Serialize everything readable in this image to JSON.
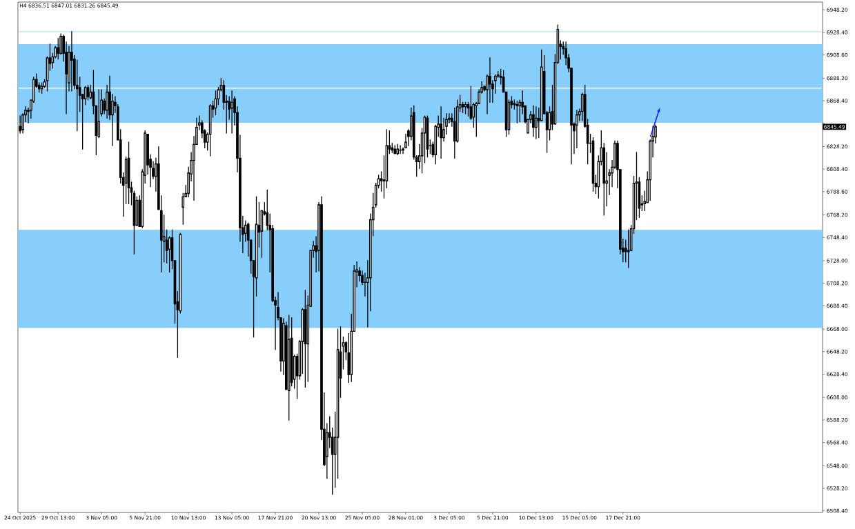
{
  "chart_data": {
    "type": "candlestick",
    "title": "H4  6836.51 6847.01 6831.26 6845.49",
    "categories": [
      "24 Oct 2025",
      null,
      null,
      null,
      null,
      null,
      null,
      null,
      null,
      null,
      null,
      null,
      null,
      null,
      "29 Oct 13:00",
      null,
      null,
      null,
      null,
      null,
      null,
      null,
      null,
      null,
      null,
      null,
      null,
      null,
      null,
      null,
      "3 Nov 05:00",
      null,
      null,
      null,
      null,
      null,
      null,
      null,
      null,
      null,
      null,
      null,
      null,
      null,
      null,
      null,
      "5 Nov 21:00",
      null,
      null,
      null,
      null,
      null,
      null,
      null,
      null,
      null,
      null,
      null,
      null,
      null,
      null,
      null,
      "10 Nov 13:00",
      null,
      null,
      null,
      null,
      null,
      null,
      null,
      null,
      null,
      null,
      null,
      null,
      null,
      null,
      null,
      "13 Nov 05:00",
      null,
      null,
      null,
      null,
      null,
      null,
      null,
      null,
      null,
      null,
      null,
      null,
      null,
      null,
      null,
      "17 Nov 21:00",
      null,
      null,
      null,
      null,
      null,
      null,
      null,
      null,
      null,
      null,
      null,
      null,
      null,
      null,
      null,
      "20 Nov 13:00",
      null,
      null,
      null,
      null,
      null,
      null,
      null,
      null,
      null,
      null,
      null,
      null,
      null,
      null,
      null,
      "25 Nov 05:00",
      null,
      null,
      null,
      null,
      null,
      null,
      null,
      null,
      null,
      null,
      null,
      null,
      null,
      null,
      null,
      "28 Nov 01:00",
      null,
      null,
      null,
      null,
      null,
      null,
      null,
      null,
      null,
      null,
      null,
      null,
      null,
      null,
      null,
      "3 Dec 05:00",
      null,
      null,
      null,
      null,
      null,
      null,
      null,
      null,
      null,
      null,
      null,
      null,
      null,
      null,
      null,
      "5 Dec 21:00",
      null,
      null,
      null,
      null,
      null,
      null,
      null,
      null,
      null,
      null,
      null,
      null,
      null,
      null,
      null,
      "10 Dec 13:00",
      null,
      null,
      null,
      null,
      null,
      null,
      null,
      null,
      null,
      null,
      null,
      null,
      null,
      null,
      null,
      "15 Dec 05:00",
      null,
      null,
      null,
      null,
      null,
      null,
      null,
      null,
      null,
      null,
      null,
      null,
      null,
      null,
      null,
      "17 Dec 21:00",
      null,
      null,
      null,
      null,
      null,
      null,
      null,
      null,
      null,
      null,
      null,
      null,
      null,
      null,
      null,
      null,
      null,
      null,
      null,
      null,
      null,
      null,
      null,
      null,
      null,
      null,
      null,
      null,
      null,
      null,
      null,
      null,
      null,
      null,
      null,
      null,
      null,
      null,
      null,
      null,
      null,
      null,
      null,
      null,
      null,
      null,
      null,
      null,
      null,
      null,
      null,
      null,
      null,
      null,
      null,
      null,
      null,
      null,
      null,
      null,
      null,
      null,
      null,
      null,
      null,
      null,
      null,
      null,
      null,
      null,
      null,
      null,
      null
    ],
    "ohlc": [
      [
        6846,
        6855,
        6840,
        6842
      ],
      [
        6843,
        6857,
        6840,
        6856
      ],
      [
        6856,
        6863,
        6850,
        6860
      ],
      [
        6860,
        6862,
        6849,
        6859
      ],
      [
        6860,
        6869,
        6853,
        6869
      ],
      [
        6868,
        6889,
        6867,
        6887
      ],
      [
        6887,
        6892,
        6880,
        6881
      ],
      [
        6882,
        6884,
        6876,
        6879
      ],
      [
        6879,
        6884,
        6875,
        6881
      ],
      [
        6881,
        6887,
        6880,
        6885
      ],
      [
        6886,
        6907,
        6877,
        6906
      ],
      [
        6906,
        6918,
        6895,
        6901
      ],
      [
        6902,
        6910,
        6897,
        6907
      ],
      [
        6907,
        6916,
        6906,
        6915
      ],
      [
        6915,
        6923,
        6905,
        6910
      ],
      [
        6910,
        6927,
        6909,
        6925
      ],
      [
        6925,
        6926,
        6903,
        6910
      ],
      [
        6911,
        6920,
        6857,
        6892
      ],
      [
        6884,
        6916,
        6877,
        6911
      ],
      [
        6911,
        6929,
        6877,
        6904
      ],
      [
        6905,
        6908,
        6879,
        6882
      ],
      [
        6882,
        6904,
        6842,
        6879
      ],
      [
        6880,
        6889,
        6859,
        6873
      ],
      [
        6874,
        6874,
        6826,
        6870
      ],
      [
        6870,
        6881,
        6865,
        6880
      ],
      [
        6880,
        6882,
        6869,
        6872
      ],
      [
        6871,
        6882,
        6870,
        6876
      ],
      [
        6876,
        6895,
        6857,
        6864
      ],
      [
        6864,
        6864,
        6821,
        6838
      ],
      [
        6837,
        6878,
        6836,
        6850
      ],
      [
        6857,
        6878,
        6855,
        6869
      ],
      [
        6868,
        6870,
        6857,
        6860
      ],
      [
        6860,
        6882,
        6853,
        6876
      ],
      [
        6876,
        6890,
        6852,
        6856
      ],
      [
        6856,
        6874,
        6829,
        6868
      ],
      [
        6867,
        6872,
        6858,
        6864
      ],
      [
        6863,
        6865,
        6834,
        6834
      ],
      [
        6834,
        6843,
        6796,
        6801
      ],
      [
        6801,
        6805,
        6767,
        6794
      ],
      [
        6796,
        6819,
        6778,
        6817
      ],
      [
        6818,
        6832,
        6778,
        6792
      ],
      [
        6792,
        6797,
        6777,
        6788
      ],
      [
        6787,
        6789,
        6734,
        6759
      ],
      [
        6759,
        6784,
        6759,
        6781
      ],
      [
        6781,
        6785,
        6758,
        6758
      ],
      [
        6758,
        6808,
        6757,
        6806
      ],
      [
        6803,
        6842,
        6796,
        6840
      ],
      [
        6839,
        6839,
        6804,
        6812
      ],
      [
        6817,
        6821,
        6793,
        6810
      ],
      [
        6809,
        6815,
        6800,
        6802
      ],
      [
        6802,
        6818,
        6789,
        6813
      ],
      [
        6813,
        6828,
        6773,
        6773
      ],
      [
        6772,
        6785,
        6718,
        6746
      ],
      [
        6745,
        6768,
        6727,
        6749
      ],
      [
        6746,
        6755,
        6726,
        6737
      ],
      [
        6738,
        6749,
        6718,
        6748
      ],
      [
        6748,
        6755,
        6721,
        6728
      ],
      [
        6728,
        6728,
        6673,
        6690
      ],
      [
        6692,
        6701,
        6643,
        6685
      ],
      [
        6684,
        6752,
        6682,
        6751
      ],
      [
        6775,
        6787,
        6760,
        6784
      ],
      [
        6784,
        6794,
        6784,
        6787
      ],
      [
        6787,
        6810,
        6784,
        6805
      ],
      [
        6804,
        6823,
        6798,
        6816
      ],
      [
        6816,
        6837,
        6781,
        6830
      ],
      [
        6830,
        6853,
        6830,
        6845
      ],
      [
        6847,
        6855,
        6843,
        6849
      ],
      [
        6849,
        6851,
        6836,
        6840
      ],
      [
        6842,
        6843,
        6827,
        6832
      ],
      [
        6832,
        6840,
        6825,
        6839
      ],
      [
        6839,
        6865,
        6820,
        6864
      ],
      [
        6864,
        6868,
        6854,
        6861
      ],
      [
        6862,
        6877,
        6856,
        6870
      ],
      [
        6870,
        6880,
        6865,
        6878
      ],
      [
        6878,
        6888,
        6877,
        6882
      ],
      [
        6882,
        6886,
        6861,
        6867
      ],
      [
        6868,
        6873,
        6840,
        6867
      ],
      [
        6868,
        6872,
        6852,
        6861
      ],
      [
        6862,
        6877,
        6840,
        6867
      ],
      [
        6870,
        6872,
        6847,
        6858
      ],
      [
        6858,
        6863,
        6806,
        6818
      ],
      [
        6818,
        6838,
        6745,
        6757
      ],
      [
        6757,
        6767,
        6735,
        6751
      ],
      [
        6752,
        6763,
        6745,
        6759
      ],
      [
        6760,
        6761,
        6732,
        6746
      ],
      [
        6746,
        6746,
        6717,
        6728
      ],
      [
        6728,
        6728,
        6661,
        6714
      ],
      [
        6713,
        6784,
        6697,
        6760
      ],
      [
        6759,
        6779,
        6740,
        6753
      ],
      [
        6754,
        6772,
        6731,
        6772
      ],
      [
        6771,
        6779,
        6768,
        6769
      ],
      [
        6770,
        6790,
        6755,
        6759
      ],
      [
        6759,
        6769,
        6718,
        6755
      ],
      [
        6756,
        6759,
        6692,
        6693
      ],
      [
        6693,
        6696,
        6650,
        6689
      ],
      [
        6687,
        6700,
        6676,
        6678
      ],
      [
        6678,
        6678,
        6631,
        6640
      ],
      [
        6640,
        6677,
        6628,
        6673
      ],
      [
        6671,
        6674,
        6615,
        6615
      ],
      [
        6614,
        6680,
        6588,
        6659
      ],
      [
        6660,
        6678,
        6618,
        6621
      ],
      [
        6624,
        6645,
        6616,
        6644
      ],
      [
        6644,
        6646,
        6607,
        6627
      ],
      [
        6627,
        6658,
        6624,
        6657
      ],
      [
        6657,
        6686,
        6629,
        6685
      ],
      [
        6685,
        6702,
        6617,
        6655
      ],
      [
        6655,
        6697,
        6622,
        6689
      ],
      [
        6688,
        6737,
        6688,
        6737
      ],
      [
        6737,
        6745,
        6731,
        6741
      ],
      [
        6741,
        6749,
        6718,
        6736
      ],
      [
        6737,
        6779,
        6719,
        6777
      ],
      [
        6777,
        6784,
        6571,
        6580
      ],
      [
        6580,
        6612,
        6548,
        6549
      ],
      [
        6556,
        6585,
        6537,
        6577
      ],
      [
        6577,
        6591,
        6564,
        6573
      ],
      [
        6573,
        6581,
        6523,
        6558
      ],
      [
        6558,
        6595,
        6529,
        6573
      ],
      [
        6573,
        6668,
        6537,
        6650
      ],
      [
        6648,
        6670,
        6608,
        6625
      ],
      [
        6653,
        6661,
        6633,
        6656
      ],
      [
        6656,
        6657,
        6641,
        6648
      ],
      [
        6647,
        6664,
        6621,
        6628
      ],
      [
        6628,
        6681,
        6622,
        6666
      ],
      [
        6666,
        6724,
        6666,
        6719
      ],
      [
        6718,
        6727,
        6705,
        6720
      ],
      [
        6719,
        6722,
        6710,
        6715
      ],
      [
        6715,
        6719,
        6707,
        6709
      ],
      [
        6709,
        6717,
        6697,
        6709
      ],
      [
        6709,
        6728,
        6670,
        6713
      ],
      [
        6713,
        6769,
        6684,
        6764
      ],
      [
        6764,
        6787,
        6750,
        6775
      ],
      [
        6777,
        6796,
        6775,
        6794
      ],
      [
        6794,
        6803,
        6792,
        6800
      ],
      [
        6800,
        6806,
        6789,
        6798
      ],
      [
        6799,
        6820,
        6783,
        6798
      ],
      [
        6798,
        6843,
        6792,
        6829
      ],
      [
        6829,
        6842,
        6822,
        6826
      ],
      [
        6827,
        6831,
        6823,
        6825
      ],
      [
        6826,
        6829,
        6822,
        6822
      ],
      [
        6822,
        6830,
        6821,
        6826
      ],
      [
        6825,
        6829,
        6822,
        6825
      ],
      [
        6826,
        6827,
        6822,
        6825
      ],
      [
        6827,
        6839,
        6827,
        6832
      ],
      [
        6842,
        6843,
        6829,
        6837
      ],
      [
        6837,
        6862,
        6834,
        6855
      ],
      [
        6858,
        6864,
        6817,
        6819
      ],
      [
        6819,
        6820,
        6802,
        6815
      ],
      [
        6815,
        6830,
        6809,
        6820
      ],
      [
        6820,
        6844,
        6805,
        6840
      ],
      [
        6840,
        6855,
        6814,
        6854
      ],
      [
        6853,
        6855,
        6819,
        6826
      ],
      [
        6829,
        6834,
        6822,
        6829
      ],
      [
        6830,
        6832,
        6819,
        6821
      ],
      [
        6821,
        6847,
        6813,
        6846
      ],
      [
        6845,
        6855,
        6837,
        6848
      ],
      [
        6848,
        6863,
        6818,
        6836
      ],
      [
        6836,
        6853,
        6833,
        6843
      ],
      [
        6846,
        6857,
        6839,
        6852
      ],
      [
        6852,
        6857,
        6849,
        6853
      ],
      [
        6853,
        6857,
        6846,
        6850
      ],
      [
        6850,
        6862,
        6818,
        6833
      ],
      [
        6833,
        6869,
        6832,
        6863
      ],
      [
        6862,
        6873,
        6859,
        6865
      ],
      [
        6865,
        6867,
        6858,
        6863
      ],
      [
        6863,
        6867,
        6857,
        6865
      ],
      [
        6865,
        6867,
        6855,
        6862
      ],
      [
        6863,
        6881,
        6852,
        6853
      ],
      [
        6854,
        6866,
        6845,
        6865
      ],
      [
        6864,
        6867,
        6837,
        6866
      ],
      [
        6866,
        6878,
        6866,
        6876
      ],
      [
        6876,
        6885,
        6875,
        6880
      ],
      [
        6881,
        6881,
        6877,
        6878
      ],
      [
        6878,
        6891,
        6857,
        6890
      ],
      [
        6890,
        6906,
        6867,
        6883
      ],
      [
        6883,
        6886,
        6867,
        6879
      ],
      [
        6886,
        6891,
        6875,
        6890
      ],
      [
        6890,
        6894,
        6889,
        6891
      ],
      [
        6890,
        6896,
        6883,
        6889
      ],
      [
        6889,
        6895,
        6876,
        6876
      ],
      [
        6876,
        6876,
        6837,
        6843
      ],
      [
        6843,
        6869,
        6839,
        6867
      ],
      [
        6868,
        6872,
        6862,
        6865
      ],
      [
        6866,
        6869,
        6861,
        6865
      ],
      [
        6865,
        6868,
        6849,
        6864
      ],
      [
        6864,
        6869,
        6850,
        6867
      ],
      [
        6867,
        6877,
        6857,
        6863
      ],
      [
        6864,
        6864,
        6849,
        6850
      ],
      [
        6840,
        6852,
        6840,
        6852
      ],
      [
        6852,
        6859,
        6849,
        6856
      ],
      [
        6856,
        6864,
        6837,
        6845
      ],
      [
        6845,
        6863,
        6835,
        6853
      ],
      [
        6853,
        6862,
        6836,
        6851
      ],
      [
        6851,
        6913,
        6851,
        6898
      ],
      [
        6894,
        6908,
        6857,
        6857
      ],
      [
        6858,
        6859,
        6823,
        6843
      ],
      [
        6843,
        6863,
        6834,
        6858
      ],
      [
        6859,
        6882,
        6843,
        6848
      ],
      [
        6848,
        6909,
        6848,
        6902
      ],
      [
        6902,
        6935,
        6901,
        6931
      ],
      [
        6918,
        6921,
        6905,
        6916
      ],
      [
        6916,
        6920,
        6909,
        6914
      ],
      [
        6914,
        6920,
        6900,
        6906
      ],
      [
        6906,
        6909,
        6894,
        6897
      ],
      [
        6897,
        6897,
        6813,
        6847
      ],
      [
        6848,
        6849,
        6822,
        6842
      ],
      [
        6847,
        6860,
        6827,
        6856
      ],
      [
        6856,
        6861,
        6851,
        6859
      ],
      [
        6859,
        6875,
        6851,
        6874
      ],
      [
        6874,
        6882,
        6845,
        6846
      ],
      [
        6847,
        6852,
        6813,
        6831
      ],
      [
        6831,
        6839,
        6823,
        6831
      ],
      [
        6833,
        6836,
        6789,
        6796
      ],
      [
        6796,
        6803,
        6787,
        6793
      ],
      [
        6793,
        6820,
        6783,
        6815
      ],
      [
        6815,
        6842,
        6812,
        6827
      ],
      [
        6827,
        6831,
        6768,
        6796
      ],
      [
        6796,
        6823,
        6776,
        6798
      ],
      [
        6803,
        6808,
        6786,
        6805
      ],
      [
        6805,
        6816,
        6793,
        6810
      ],
      [
        6810,
        6833,
        6809,
        6831
      ],
      [
        6831,
        6833,
        6792,
        6808
      ],
      [
        6808,
        6808,
        6734,
        6738
      ],
      [
        6739,
        6747,
        6727,
        6736
      ],
      [
        6739,
        6746,
        6727,
        6736
      ],
      [
        6737,
        6755,
        6722,
        6736
      ],
      [
        6737,
        6759,
        6737,
        6756
      ],
      [
        6756,
        6802,
        6752,
        6796
      ],
      [
        6796,
        6823,
        6764,
        6797
      ],
      [
        6797,
        6801,
        6766,
        6774
      ],
      [
        6778,
        6785,
        6772,
        6777
      ],
      [
        6778,
        6789,
        6772,
        6780
      ],
      [
        6779,
        6806,
        6779,
        6799
      ],
      [
        6799,
        6834,
        6781,
        6833
      ],
      [
        6833,
        6846,
        6819,
        6837
      ],
      [
        6836.51,
        6847.01,
        6831.26,
        6845.49
      ],
      null,
      null,
      null,
      null,
      null,
      null,
      null,
      null,
      null,
      null,
      null,
      null,
      null,
      null,
      null,
      null,
      null,
      null,
      null,
      null,
      null,
      null,
      null,
      null,
      null,
      null,
      null,
      null,
      null,
      null,
      null,
      null,
      null,
      null,
      null,
      null,
      null,
      null,
      null,
      null,
      null,
      null,
      null,
      null,
      null,
      null,
      null,
      null,
      null,
      null,
      null,
      null,
      null,
      null,
      null,
      null,
      null,
      null,
      null,
      null,
      null
    ],
    "color": "#000000",
    "ylim": [
      6507,
      6955
    ],
    "yticks": [
      {
        "value": 6948.2,
        "label": "6948.20"
      },
      {
        "value": 6928.4,
        "label": "6928.40"
      },
      {
        "value": 6908.6,
        "label": "6908.60"
      },
      {
        "value": 6888.2,
        "label": "6888.20"
      },
      {
        "value": 6868.4,
        "label": "6868.40"
      },
      {
        "value": 6848.6,
        "label": null
      },
      {
        "value": 6828.2,
        "label": "6828.20"
      },
      {
        "value": 6808.4,
        "label": "6808.40"
      },
      {
        "value": 6788.6,
        "label": "6788.60"
      },
      {
        "value": 6768.2,
        "label": "6768.20"
      },
      {
        "value": 6748.4,
        "label": "6748.40"
      },
      {
        "value": 6728,
        "label": "6728.00"
      },
      {
        "value": 6708.2,
        "label": "6708.20"
      },
      {
        "value": 6688.4,
        "label": "6688.40"
      },
      {
        "value": 6668,
        "label": "6668.00"
      },
      {
        "value": 6648.2,
        "label": "6648.20"
      },
      {
        "value": 6628.4,
        "label": "6628.40"
      },
      {
        "value": 6608,
        "label": "6608.00"
      },
      {
        "value": 6588.2,
        "label": "6588.20"
      },
      {
        "value": 6568.4,
        "label": "6568.40"
      },
      {
        "value": 6548,
        "label": "6548.00"
      },
      {
        "value": 6528.2,
        "label": "6528.20"
      },
      {
        "value": 6508.4,
        "label": "6508.40"
      }
    ],
    "ref_lines": [
      {
        "axis": "y",
        "value": 6929,
        "color": "#87cefa"
      }
    ],
    "bands": [
      {
        "axis": "y",
        "from": 6880,
        "to": 6918,
        "color": "#87cefa"
      },
      {
        "axis": "y",
        "from": 6849,
        "to": 6879,
        "color": "#87cefa"
      },
      {
        "axis": "y",
        "from": 6669,
        "to": 6755,
        "color": "#87cefa"
      }
    ],
    "annotations": [
      "6845.49"
    ]
  }
}
